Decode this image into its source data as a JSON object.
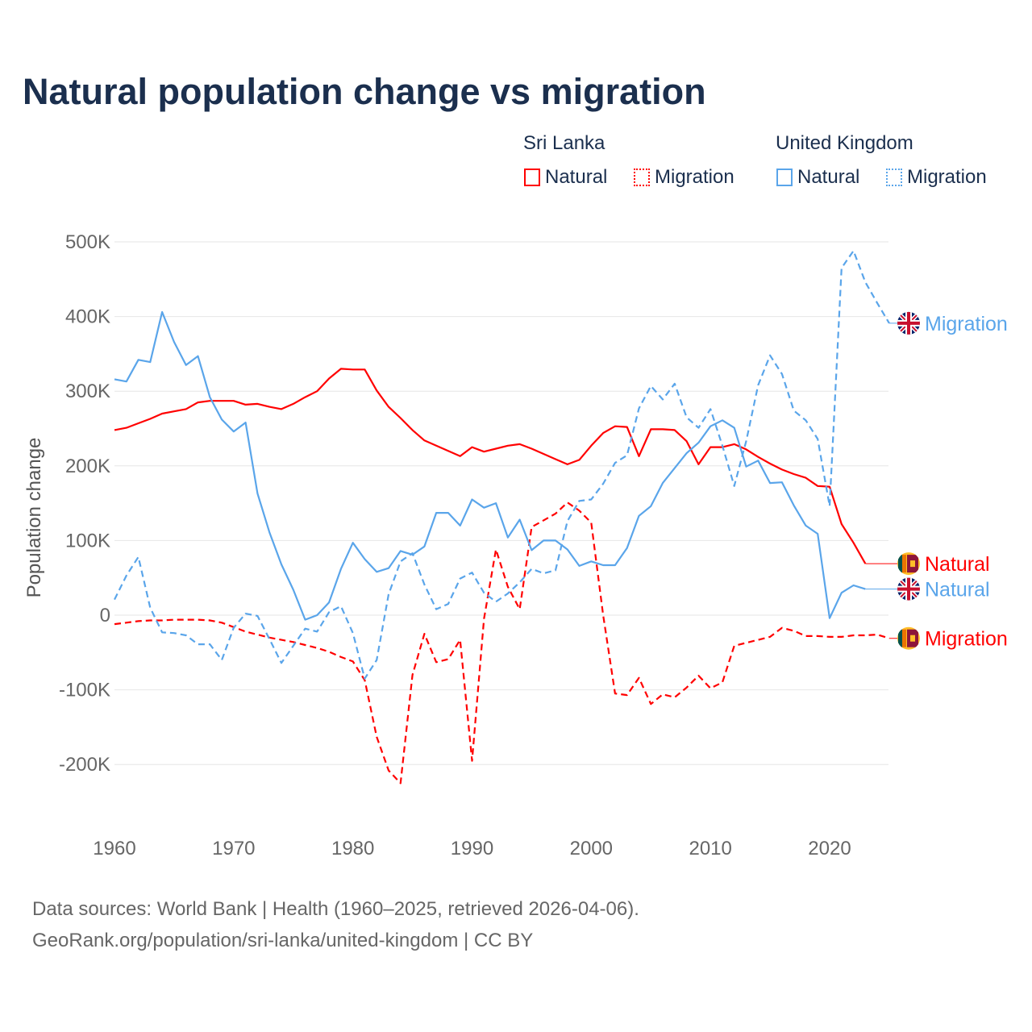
{
  "title": "Natural population change vs migration",
  "legend": {
    "groups": [
      {
        "name": "Sri Lanka",
        "color": "#ff0000",
        "items": [
          "Natural",
          "Migration"
        ]
      },
      {
        "name": "United Kingdom",
        "color": "#5aa5ea",
        "items": [
          "Natural",
          "Migration"
        ]
      }
    ]
  },
  "sources": [
    "Data sources: World Bank | Health (1960–2025, retrieved 2026-04-06).",
    "GeoRank.org/population/sri-lanka/united-kingdom | CC BY"
  ],
  "chart_data": {
    "type": "line",
    "title": "Natural population change vs migration",
    "ylabel": "Population change",
    "xlabel": "",
    "ylim": [
      -250000,
      500000
    ],
    "xlim": [
      1960,
      2025
    ],
    "y_ticks": [
      {
        "v": 500000,
        "label": "500K"
      },
      {
        "v": 400000,
        "label": "400K"
      },
      {
        "v": 300000,
        "label": "300K"
      },
      {
        "v": 200000,
        "label": "200K"
      },
      {
        "v": 100000,
        "label": "100K"
      },
      {
        "v": 0,
        "label": "0"
      },
      {
        "v": -100000,
        "label": "-100K"
      },
      {
        "v": -200000,
        "label": "-200K"
      }
    ],
    "x_ticks": [
      {
        "v": 1960,
        "label": "1960"
      },
      {
        "v": 1970,
        "label": "1970"
      },
      {
        "v": 1980,
        "label": "1980"
      },
      {
        "v": 1990,
        "label": "1990"
      },
      {
        "v": 2000,
        "label": "2000"
      },
      {
        "v": 2010,
        "label": "2010"
      },
      {
        "v": 2020,
        "label": "2020"
      }
    ],
    "grid": true,
    "series": [
      {
        "name": "Sri Lanka Natural",
        "label": "Natural",
        "country": "Sri Lanka",
        "color": "#ff0000",
        "dashed": false,
        "start": 1960,
        "values": [
          248,
          251,
          257,
          263,
          270,
          273,
          276,
          285,
          287,
          287,
          287,
          282,
          283,
          279,
          276,
          283,
          292,
          300,
          317,
          330,
          329,
          329,
          301,
          279,
          264,
          248,
          234,
          227,
          220,
          213,
          225,
          219,
          223,
          227,
          229,
          223,
          216,
          209,
          202,
          208,
          227,
          244,
          253,
          252,
          213,
          249,
          249,
          248,
          233,
          202,
          225,
          225,
          229,
          222,
          212,
          203,
          195,
          189,
          184,
          173,
          172,
          122,
          97,
          69
        ]
      },
      {
        "name": "Sri Lanka Migration",
        "label": "Migration",
        "country": "Sri Lanka",
        "color": "#ff0000",
        "dashed": true,
        "start": 1960,
        "values": [
          -12,
          -10,
          -8,
          -7,
          -7,
          -6,
          -6,
          -6,
          -7,
          -10,
          -16,
          -22,
          -26,
          -30,
          -33,
          -36,
          -40,
          -44,
          -49,
          -56,
          -62,
          -87,
          -163,
          -208,
          -225,
          -80,
          -25,
          -63,
          -59,
          -33,
          -195,
          -5,
          88,
          38,
          8,
          118,
          127,
          136,
          151,
          140,
          124,
          0,
          -105,
          -107,
          -84,
          -119,
          -106,
          -110,
          -97,
          -81,
          -98,
          -90,
          -41,
          -37,
          -33,
          -29,
          -17,
          -21,
          -28,
          -28,
          -29,
          -29,
          -27,
          -27,
          -26,
          -31
        ]
      },
      {
        "name": "United Kingdom Natural",
        "label": "Natural",
        "country": "United Kingdom",
        "color": "#5aa5ea",
        "dashed": false,
        "start": 1960,
        "values": [
          316,
          313,
          342,
          339,
          406,
          366,
          335,
          347,
          292,
          262,
          246,
          258,
          163,
          111,
          68,
          34,
          -6,
          0,
          17,
          62,
          97,
          75,
          58,
          63,
          86,
          81,
          92,
          137,
          137,
          120,
          155,
          144,
          150,
          104,
          128,
          87,
          100,
          100,
          88,
          66,
          72,
          67,
          67,
          90,
          133,
          146,
          177,
          197,
          217,
          231,
          253,
          261,
          251,
          199,
          207,
          177,
          178,
          147,
          120,
          109,
          -4,
          30,
          40,
          35
        ]
      },
      {
        "name": "United Kingdom Migration",
        "label": "Migration",
        "country": "United Kingdom",
        "color": "#5aa5ea",
        "dashed": true,
        "start": 1960,
        "values": [
          21,
          53,
          78,
          10,
          -23,
          -24,
          -27,
          -39,
          -39,
          -60,
          -17,
          2,
          -1,
          -32,
          -64,
          -41,
          -18,
          -22,
          4,
          12,
          -24,
          -85,
          -60,
          28,
          72,
          83,
          41,
          8,
          15,
          49,
          57,
          30,
          18,
          29,
          44,
          62,
          56,
          60,
          126,
          153,
          155,
          176,
          204,
          214,
          277,
          307,
          289,
          310,
          265,
          251,
          276,
          227,
          173,
          233,
          308,
          348,
          323,
          274,
          261,
          236,
          146,
          465,
          488,
          446,
          418,
          391
        ]
      }
    ],
    "value_unit": "thousands"
  }
}
